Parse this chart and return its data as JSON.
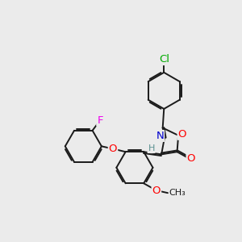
{
  "background_color": "#ebebeb",
  "bond_color": "#1a1a1a",
  "atom_colors": {
    "O": "#ff0000",
    "N": "#0000cd",
    "Cl": "#00aa00",
    "F": "#ee00ee",
    "H": "#5a9090",
    "C": "#1a1a1a"
  },
  "bond_width": 1.4,
  "dbo": 0.055,
  "font_size": 9.5,
  "small_font": 8.0
}
